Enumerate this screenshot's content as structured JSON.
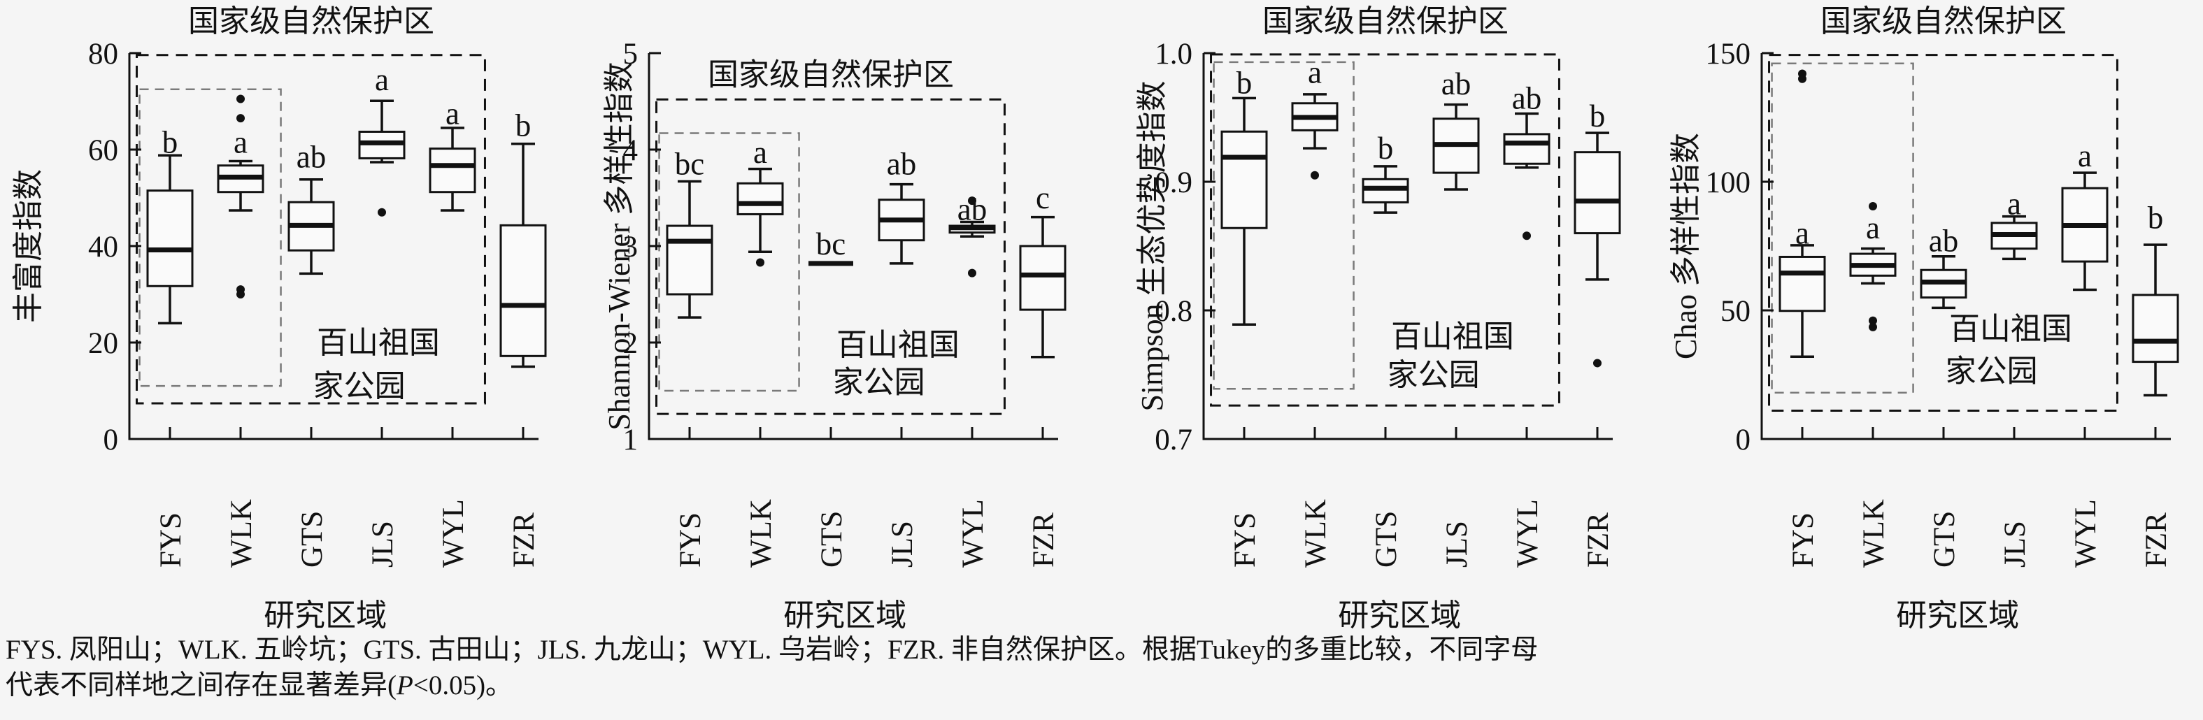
{
  "colors": {
    "ink": "#111111",
    "background": "#f5f5f5",
    "park_box_dash": "#7a7a7a"
  },
  "caption": {
    "line1": "FYS. 凤阳山；WLK. 五岭坑；GTS. 古田山；JLS. 九龙山；WYL. 乌岩岭；FZR. 非自然保护区。根据Tukey的多重比较，不同字母",
    "line2_pre": "代表不同样地之间存在显著差异(",
    "line2_italic": "P",
    "line2_post": "<0.05)。"
  },
  "chart_data": [
    {
      "type": "box",
      "title": "国家级自然保护区",
      "title_inside": false,
      "ylabel": "丰富度指数",
      "xlabel": "研究区域",
      "ymin": 0,
      "ymax": 80,
      "yticks": [
        0,
        20,
        40,
        60,
        80
      ],
      "ytick_labels": [
        "0",
        "20",
        "40",
        "60",
        "80"
      ],
      "categories": [
        "FYS",
        "WLK",
        "GTS",
        "JLS",
        "WYL",
        "FZR"
      ],
      "reserve_box": {
        "x0": -0.47,
        "x1": 4.46,
        "y_top": 79.6,
        "y_bottom": 7.4
      },
      "park_box": {
        "x0": -0.43,
        "x1": 1.57,
        "y_top": 72.5,
        "y_bottom": 11.0
      },
      "park_label": {
        "line1": "百山祖国",
        "line2": "家公园",
        "x": 2.95,
        "y1": 20.0,
        "y2": 11.0
      },
      "boxes": [
        {
          "cat": "FYS",
          "letter": "b",
          "letter_y": 61.5,
          "lo": 24.0,
          "q1": 31.7,
          "median": 39.2,
          "q3": 51.5,
          "hi": 58.8,
          "outliers": []
        },
        {
          "cat": "WLK",
          "letter": "a",
          "letter_y": 61.5,
          "lo": 47.4,
          "q1": 51.2,
          "median": 54.3,
          "q3": 56.7,
          "hi": 57.6,
          "outliers": [
            70.5,
            66.5,
            31.0,
            30.0
          ]
        },
        {
          "cat": "GTS",
          "letter": "ab",
          "letter_y": 58.5,
          "lo": 34.3,
          "q1": 39.1,
          "median": 44.3,
          "q3": 49.1,
          "hi": 53.8,
          "outliers": []
        },
        {
          "cat": "JLS",
          "letter": "a",
          "letter_y": 74.5,
          "lo": 57.4,
          "q1": 58.2,
          "median": 61.4,
          "q3": 63.7,
          "hi": 70.1,
          "outliers": [
            47.0
          ]
        },
        {
          "cat": "WYL",
          "letter": "a",
          "letter_y": 67.5,
          "lo": 47.4,
          "q1": 51.2,
          "median": 56.7,
          "q3": 60.2,
          "hi": 64.5,
          "outliers": []
        },
        {
          "cat": "FZR",
          "letter": "b",
          "letter_y": 65.0,
          "lo": 15.0,
          "q1": 17.2,
          "median": 27.7,
          "q3": 44.3,
          "hi": 61.2,
          "outliers": []
        }
      ]
    },
    {
      "type": "box",
      "title": "国家级自然保护区",
      "title_inside": true,
      "title_value": 4.78,
      "ylabel": "Shannon-Wiener 多样性指数",
      "xlabel": "研究区域",
      "ymin": 1,
      "ymax": 5,
      "yticks": [
        1,
        2,
        3,
        4,
        5
      ],
      "ytick_labels": [
        "1",
        "2",
        "3",
        "4",
        "5"
      ],
      "categories": [
        "FYS",
        "WLK",
        "GTS",
        "JLS",
        "WYL",
        "FZR"
      ],
      "reserve_box": {
        "x0": -0.47,
        "x1": 4.46,
        "y_top": 4.52,
        "y_bottom": 1.26
      },
      "park_box": {
        "x0": -0.43,
        "x1": 1.55,
        "y_top": 4.17,
        "y_bottom": 1.5
      },
      "park_label": {
        "line1": "百山祖国",
        "line2": "家公园",
        "x": 2.95,
        "y1": 1.98,
        "y2": 1.59
      },
      "boxes": [
        {
          "cat": "FYS",
          "letter": "bc",
          "letter_y": 3.85,
          "lo": 2.26,
          "q1": 2.5,
          "median": 3.05,
          "q3": 3.21,
          "hi": 3.67,
          "outliers": []
        },
        {
          "cat": "WLK",
          "letter": "a",
          "letter_y": 3.97,
          "lo": 2.94,
          "q1": 3.33,
          "median": 3.44,
          "q3": 3.65,
          "hi": 3.8,
          "outliers": [
            2.83
          ]
        },
        {
          "cat": "GTS",
          "letter": "bc",
          "letter_y": 3.02,
          "lo": 2.82,
          "q1": 2.82,
          "median": 2.82,
          "q3": 2.82,
          "hi": 2.82,
          "outliers": []
        },
        {
          "cat": "JLS",
          "letter": "ab",
          "letter_y": 3.85,
          "lo": 2.82,
          "q1": 3.06,
          "median": 3.27,
          "q3": 3.48,
          "hi": 3.64,
          "outliers": []
        },
        {
          "cat": "WYL",
          "letter": "ab",
          "letter_y": 3.38,
          "lo": 3.1,
          "q1": 3.14,
          "median": 3.19,
          "q3": 3.21,
          "hi": 3.25,
          "outliers": [
            3.47,
            2.72
          ]
        },
        {
          "cat": "FZR",
          "letter": "c",
          "letter_y": 3.5,
          "lo": 1.85,
          "q1": 2.34,
          "median": 2.7,
          "q3": 3.0,
          "hi": 3.3,
          "outliers": []
        }
      ]
    },
    {
      "type": "box",
      "title": "国家级自然保护区",
      "title_inside": false,
      "ylabel": "Simpson 生态优势度指数",
      "xlabel": "研究区域",
      "ymin": 0.7,
      "ymax": 1.0,
      "yticks": [
        0.7,
        0.8,
        0.9,
        1.0
      ],
      "ytick_labels": [
        "0.7",
        "0.8",
        "0.9",
        "1.0"
      ],
      "categories": [
        "FYS",
        "WLK",
        "GTS",
        "JLS",
        "WYL",
        "FZR"
      ],
      "reserve_box": {
        "x0": -0.47,
        "x1": 4.46,
        "y_top": 0.999,
        "y_bottom": 0.726
      },
      "park_box": {
        "x0": -0.43,
        "x1": 1.55,
        "y_top": 0.993,
        "y_bottom": 0.739
      },
      "park_label": {
        "line1": "百山祖国",
        "line2": "家公园",
        "x": 2.95,
        "y1": 0.78,
        "y2": 0.75
      },
      "boxes": [
        {
          "cat": "FYS",
          "letter": "b",
          "letter_y": 0.977,
          "lo": 0.789,
          "q1": 0.864,
          "median": 0.919,
          "q3": 0.939,
          "hi": 0.965,
          "outliers": []
        },
        {
          "cat": "WLK",
          "letter": "a",
          "letter_y": 0.985,
          "lo": 0.926,
          "q1": 0.94,
          "median": 0.95,
          "q3": 0.961,
          "hi": 0.968,
          "outliers": [
            0.905
          ]
        },
        {
          "cat": "GTS",
          "letter": "b",
          "letter_y": 0.926,
          "lo": 0.876,
          "q1": 0.884,
          "median": 0.895,
          "q3": 0.902,
          "hi": 0.912,
          "outliers": []
        },
        {
          "cat": "JLS",
          "letter": "ab",
          "letter_y": 0.976,
          "lo": 0.894,
          "q1": 0.907,
          "median": 0.929,
          "q3": 0.949,
          "hi": 0.96,
          "outliers": []
        },
        {
          "cat": "WYL",
          "letter": "ab",
          "letter_y": 0.965,
          "lo": 0.911,
          "q1": 0.914,
          "median": 0.93,
          "q3": 0.937,
          "hi": 0.953,
          "outliers": [
            0.858
          ]
        },
        {
          "cat": "FZR",
          "letter": "b",
          "letter_y": 0.951,
          "lo": 0.824,
          "q1": 0.86,
          "median": 0.885,
          "q3": 0.923,
          "hi": 0.938,
          "outliers": [
            0.759
          ]
        }
      ]
    },
    {
      "type": "box",
      "title": "国家级自然保护区",
      "title_inside": false,
      "ylabel": "Chao 多样性指数",
      "xlabel": "研究区域",
      "ymin": 0,
      "ymax": 150,
      "yticks": [
        0,
        50,
        100,
        150
      ],
      "ytick_labels": [
        "0",
        "50",
        "100",
        "150"
      ],
      "categories": [
        "FYS",
        "WLK",
        "GTS",
        "JLS",
        "WYL",
        "FZR"
      ],
      "reserve_box": {
        "x0": -0.47,
        "x1": 4.46,
        "y_top": 149.3,
        "y_bottom": 11.0
      },
      "park_box": {
        "x0": -0.43,
        "x1": 1.57,
        "y_top": 146.0,
        "y_bottom": 18.0
      },
      "park_label": {
        "line1": "百山祖国",
        "line2": "家公园",
        "x": 2.95,
        "y1": 43.0,
        "y2": 26.5
      },
      "boxes": [
        {
          "cat": "FYS",
          "letter": "a",
          "letter_y": 80.0,
          "lo": 32.0,
          "q1": 49.8,
          "median": 64.5,
          "q3": 70.8,
          "hi": 75.3,
          "outliers": [
            142.0,
            140.0
          ]
        },
        {
          "cat": "WLK",
          "letter": "a",
          "letter_y": 82.0,
          "lo": 60.5,
          "q1": 63.5,
          "median": 67.5,
          "q3": 72.0,
          "hi": 74.0,
          "outliers": [
            90.5,
            46.0,
            43.5
          ]
        },
        {
          "cat": "GTS",
          "letter": "ab",
          "letter_y": 77.0,
          "lo": 51.0,
          "q1": 55.0,
          "median": 61.0,
          "q3": 65.7,
          "hi": 71.0,
          "outliers": []
        },
        {
          "cat": "JLS",
          "letter": "a",
          "letter_y": 91.5,
          "lo": 70.0,
          "q1": 74.0,
          "median": 79.5,
          "q3": 84.0,
          "hi": 86.5,
          "outliers": []
        },
        {
          "cat": "WYL",
          "letter": "a",
          "letter_y": 110.0,
          "lo": 58.0,
          "q1": 69.0,
          "median": 83.0,
          "q3": 97.5,
          "hi": 103.5,
          "outliers": []
        },
        {
          "cat": "FZR",
          "letter": "b",
          "letter_y": 86.0,
          "lo": 17.0,
          "q1": 30.0,
          "median": 38.0,
          "q3": 56.0,
          "hi": 75.5,
          "outliers": []
        }
      ]
    }
  ]
}
